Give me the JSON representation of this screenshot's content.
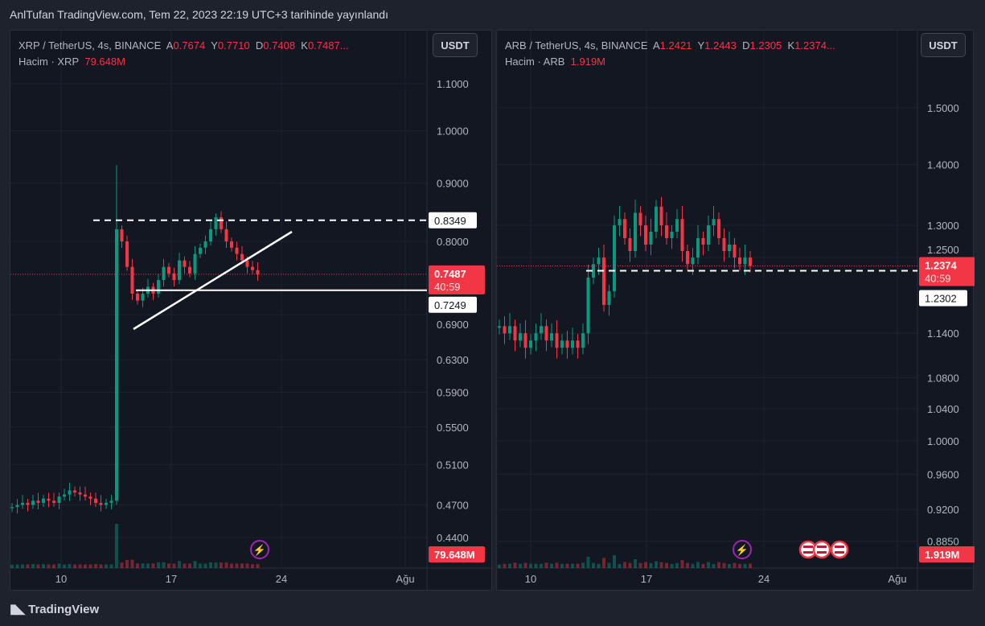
{
  "header": {
    "title": "AnlTufan TradingView.com, Tem 22, 2023 22:19 UTC+3 tarihinde yayınlandı"
  },
  "footer": {
    "brand": "TradingView"
  },
  "colors": {
    "up": "#089981",
    "down": "#f23645",
    "bg": "#131722"
  },
  "chart_data": [
    {
      "type": "candlestick",
      "symbol": "XRP / TetherUS, 4s, BINANCE",
      "currency": "USDT",
      "ohlc": {
        "A_label": "A",
        "A": "0.7674",
        "Y_label": "Y",
        "Y": "0.7710",
        "D_label": "D",
        "D": "0.7408",
        "K_label": "K",
        "K": "0.7487..."
      },
      "volume_label": "Hacim · XRP",
      "volume": "79.648M",
      "y_scale": "log",
      "ylim": [
        0.43,
        1.13
      ],
      "y_ticks": [
        "1.1000",
        "1.0000",
        "0.9000",
        "0.8000",
        "0.6900",
        "0.6300",
        "0.5900",
        "0.5500",
        "0.5100",
        "0.4700",
        "0.4400"
      ],
      "y_tick_values": [
        1.1,
        1.0,
        0.9,
        0.8,
        0.69,
        0.63,
        0.59,
        0.55,
        0.51,
        0.47,
        0.44
      ],
      "x_ticks": [
        "10",
        "17",
        "24",
        "Ağu"
      ],
      "price_label": "0.7487",
      "countdown": "40:59",
      "price": 0.7487,
      "levels": [
        {
          "label": "0.8349",
          "value": 0.8349,
          "style": "dashed"
        },
        {
          "label": "0.7249",
          "value": 0.7249,
          "style": "solid"
        }
      ],
      "closes": [
        0.468,
        0.47,
        0.472,
        0.47,
        0.474,
        0.472,
        0.476,
        0.474,
        0.472,
        0.478,
        0.48,
        0.484,
        0.482,
        0.48,
        0.478,
        0.476,
        0.472,
        0.47,
        0.472,
        0.474,
        0.82,
        0.8,
        0.76,
        0.72,
        0.71,
        0.72,
        0.73,
        0.72,
        0.74,
        0.76,
        0.75,
        0.74,
        0.77,
        0.76,
        0.75,
        0.78,
        0.79,
        0.8,
        0.82,
        0.84,
        0.82,
        0.8,
        0.79,
        0.78,
        0.77,
        0.76,
        0.755,
        0.7487
      ]
    },
    {
      "type": "candlestick",
      "symbol": "ARB / TetherUS, 4s, BINANCE",
      "currency": "USDT",
      "ohlc": {
        "A_label": "A",
        "A": "1.2421",
        "Y_label": "Y",
        "Y": "1.2443",
        "D_label": "D",
        "D": "1.2305",
        "K_label": "K",
        "K": "1.2374..."
      },
      "volume_label": "Hacim · ARB",
      "volume": "1.919M",
      "y_scale": "log",
      "ylim": [
        0.87,
        1.53
      ],
      "y_ticks": [
        "1.5000",
        "1.4000",
        "1.3000",
        "1.2500",
        "1.1400",
        "1.0800",
        "1.0400",
        "1.0000",
        "0.9600",
        "0.9200",
        "0.8850"
      ],
      "y_tick_values": [
        1.5,
        1.4,
        1.3,
        1.25,
        1.14,
        1.08,
        1.04,
        1.0,
        0.96,
        0.92,
        0.885
      ],
      "x_ticks": [
        "10",
        "17",
        "24",
        "Ağu"
      ],
      "price_label": "1.2374",
      "countdown": "40:59",
      "price": 1.2374,
      "levels": [
        {
          "label": "1.2302",
          "value": 1.2302,
          "style": "dashed"
        }
      ],
      "closes": [
        1.15,
        1.14,
        1.15,
        1.13,
        1.14,
        1.12,
        1.13,
        1.14,
        1.15,
        1.13,
        1.14,
        1.12,
        1.13,
        1.12,
        1.13,
        1.12,
        1.14,
        1.22,
        1.24,
        1.25,
        1.18,
        1.2,
        1.3,
        1.31,
        1.28,
        1.26,
        1.32,
        1.3,
        1.27,
        1.29,
        1.33,
        1.3,
        1.28,
        1.29,
        1.31,
        1.26,
        1.24,
        1.25,
        1.28,
        1.27,
        1.3,
        1.31,
        1.28,
        1.26,
        1.27,
        1.25,
        1.24,
        1.25,
        1.2374
      ]
    }
  ]
}
